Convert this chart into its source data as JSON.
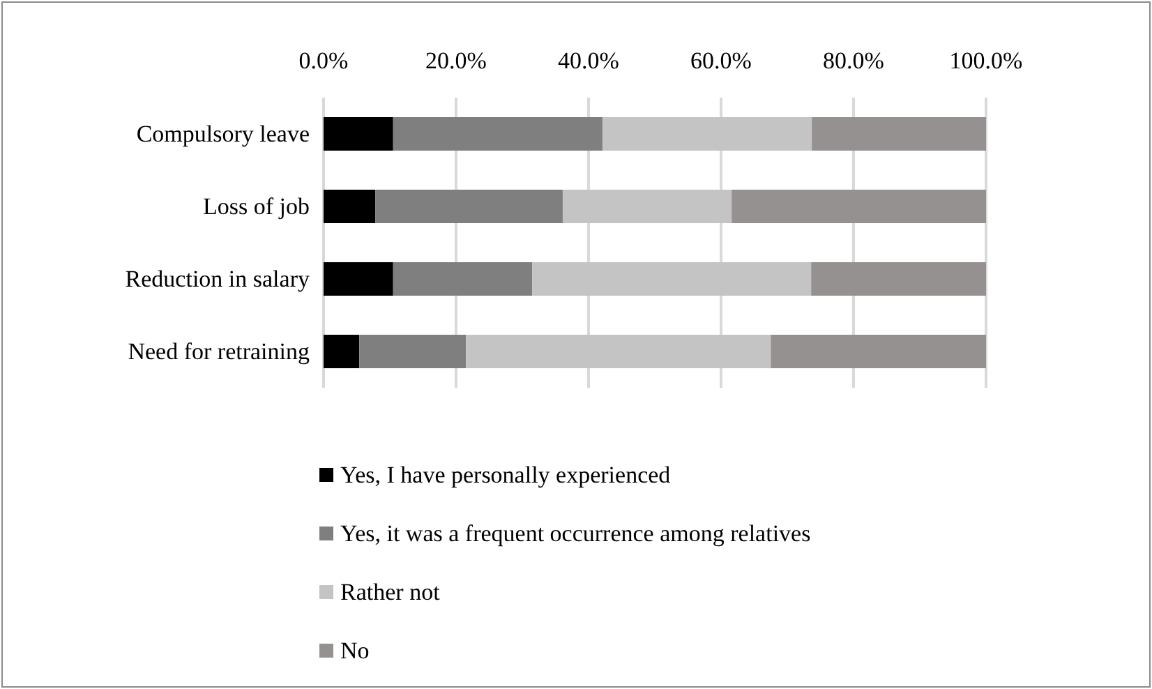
{
  "chart_data": {
    "type": "bar",
    "orientation": "horizontal",
    "stacked": true,
    "categories": [
      "Compulsory leave",
      "Loss of job",
      "Reduction in salary",
      "Need for retraining"
    ],
    "series": [
      {
        "name": "Yes, I have personally experienced",
        "color": "#000000",
        "values": [
          10.5,
          7.8,
          10.5,
          5.4
        ]
      },
      {
        "name": "Yes, it was a frequent occurrence among relatives",
        "color": "#7f7f7f",
        "values": [
          31.6,
          28.3,
          21.0,
          16.1
        ]
      },
      {
        "name": "Rather not",
        "color": "#c4c4c4",
        "values": [
          31.6,
          25.5,
          42.1,
          46.0
        ]
      },
      {
        "name": "No",
        "color": "#959190",
        "values": [
          26.3,
          38.4,
          26.4,
          32.5
        ]
      }
    ],
    "xlim": [
      0,
      100
    ],
    "xticks": [
      {
        "value": 0,
        "label": "0.0%"
      },
      {
        "value": 20,
        "label": "20.0%"
      },
      {
        "value": 40,
        "label": "40.0%"
      },
      {
        "value": 60,
        "label": "60.0%"
      },
      {
        "value": 80,
        "label": "80.0%"
      },
      {
        "value": 100,
        "label": "100.0%"
      }
    ],
    "grid": "x",
    "legend": "bottom"
  }
}
